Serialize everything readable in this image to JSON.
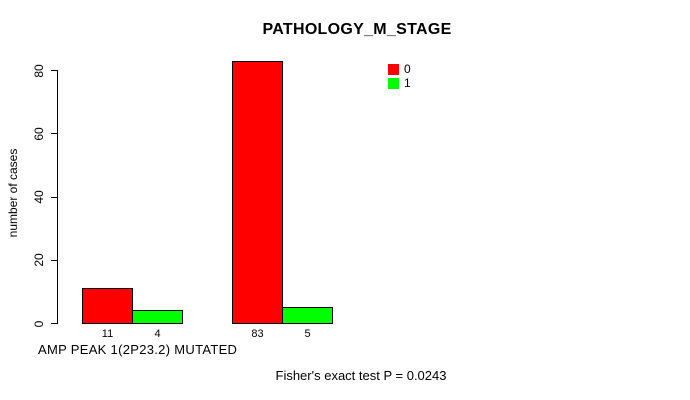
{
  "chart_data": {
    "type": "bar",
    "title": "PATHOLOGY_M_STAGE",
    "ylabel": "number of cases",
    "xlabel": "AMP PEAK 1(2P23.2) MUTATED",
    "ylim": [
      0,
      80
    ],
    "yticks": [
      0,
      20,
      40,
      60,
      80
    ],
    "grid": false,
    "legend_position": "top-right",
    "legend": [
      {
        "label": "0",
        "color": "#ff0000"
      },
      {
        "label": "1",
        "color": "#00ff00"
      }
    ],
    "groups": [
      {
        "bars": [
          {
            "series": "0",
            "value": 11
          },
          {
            "series": "1",
            "value": 4
          }
        ]
      },
      {
        "bars": [
          {
            "series": "0",
            "value": 83
          },
          {
            "series": "1",
            "value": 5
          }
        ]
      }
    ],
    "bar_value_labels": [
      11,
      4,
      83,
      5
    ],
    "annotation": "Fisher's exact test P = 0.0243",
    "colors": {
      "bar_border": "#000000",
      "axis": "#000000",
      "background": "#ffffff"
    }
  }
}
